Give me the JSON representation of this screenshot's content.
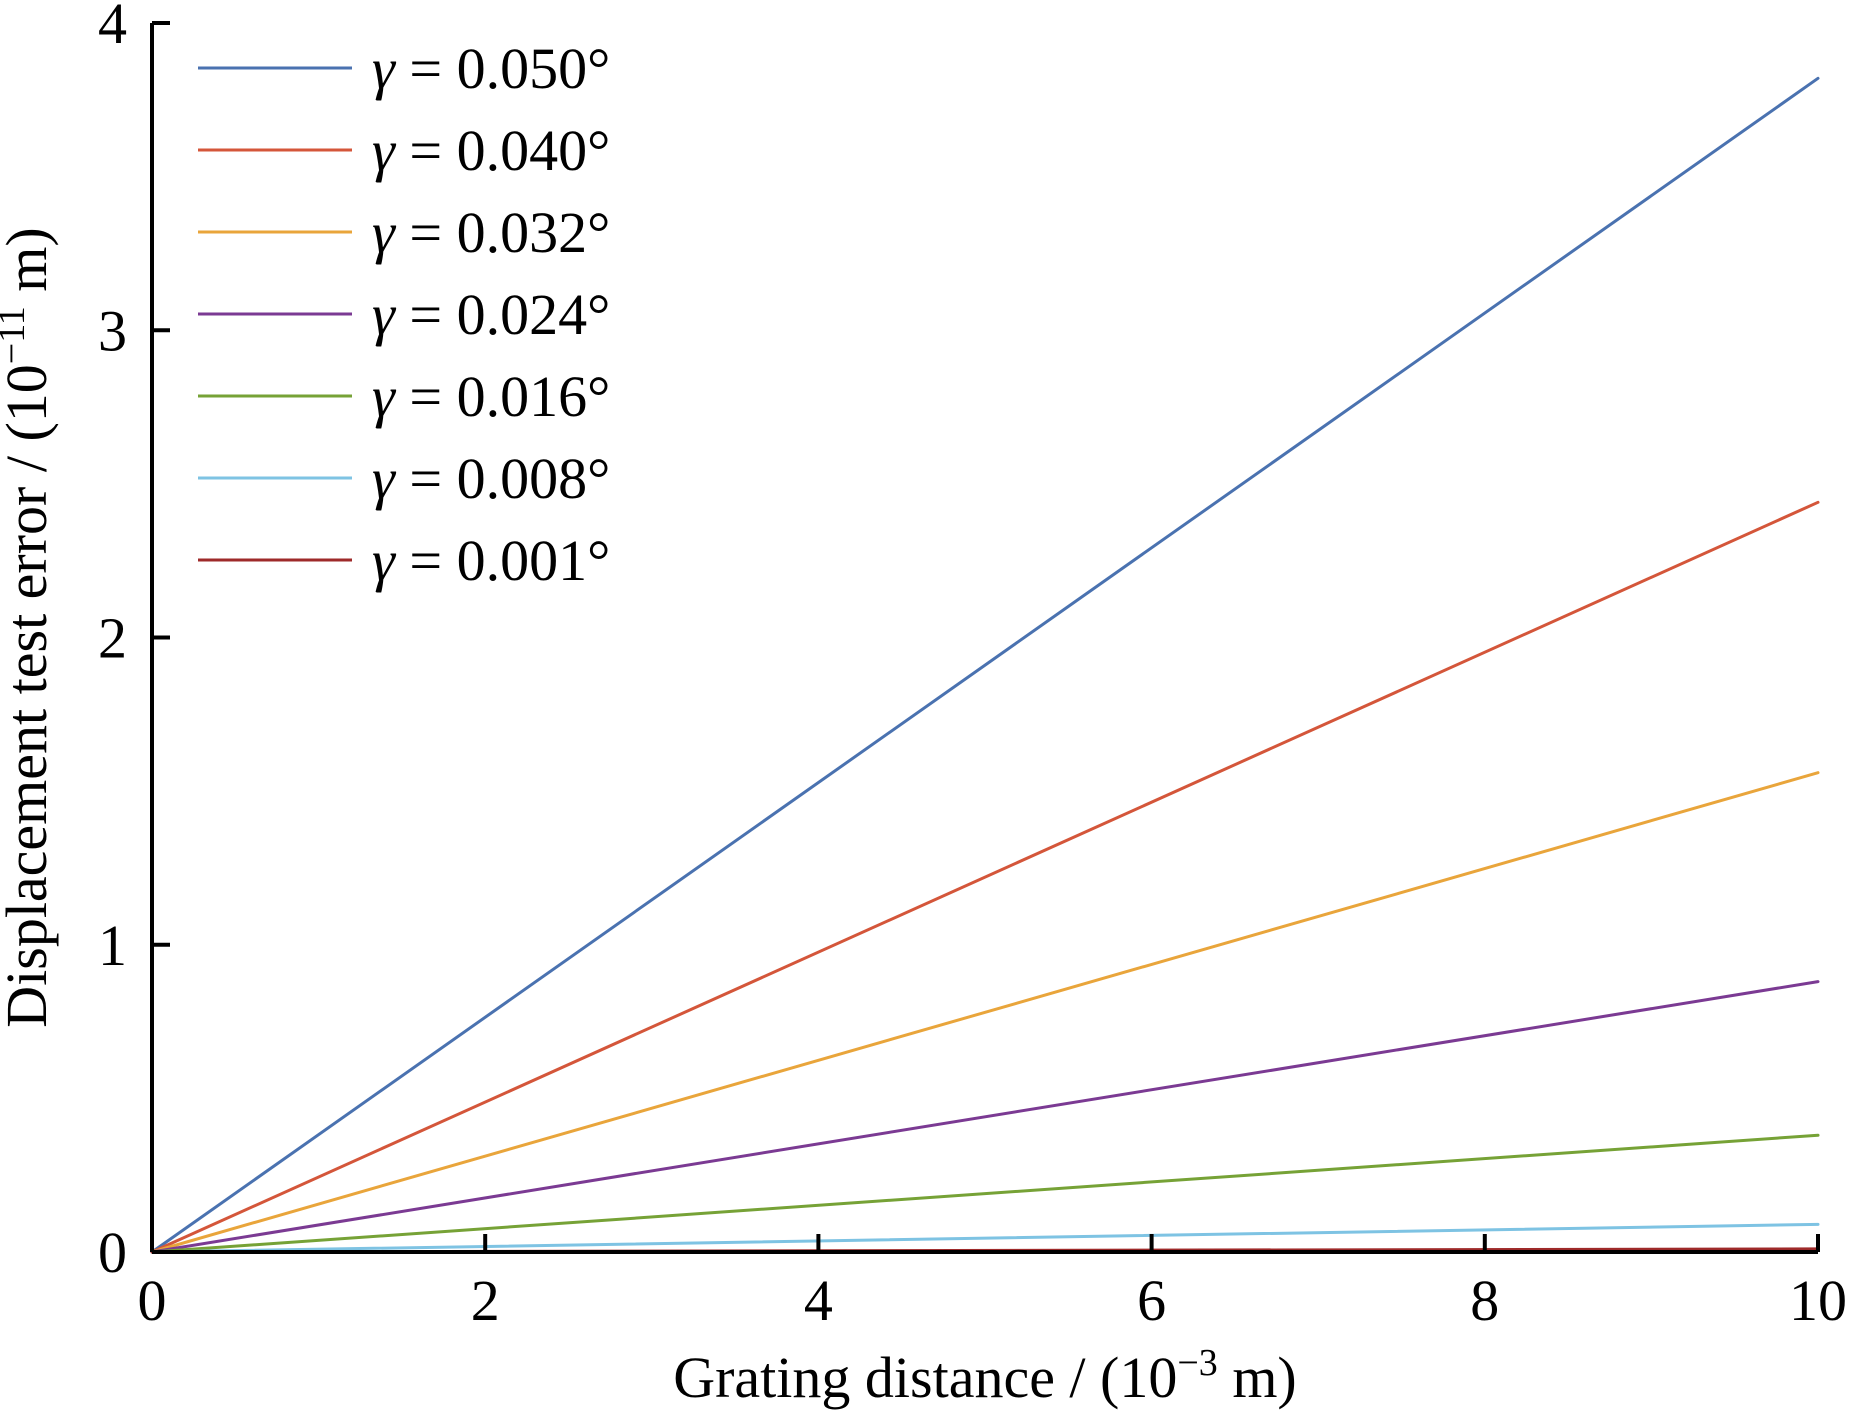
{
  "chart_data": {
    "type": "line",
    "title": "",
    "xlabel": "Grating distance / (10",
    "xlabel_exp": "−3",
    "xlabel_unit": " m)",
    "ylabel": "Displacement test error / (10",
    "ylabel_exp": "−11",
    "ylabel_unit": " m)",
    "xlim": [
      0,
      10
    ],
    "ylim": [
      0,
      4
    ],
    "xticks": [
      "0",
      "2",
      "4",
      "6",
      "8",
      "10"
    ],
    "yticks": [
      "0",
      "1",
      "2",
      "3",
      "4"
    ],
    "grid": false,
    "legend_position": "top-left",
    "x": [
      0,
      10
    ],
    "series": [
      {
        "name": "γ = 0.050°",
        "symbol": "γ",
        "label": " = 0.050°",
        "color": "#4a72b0",
        "values": [
          0,
          3.82
        ]
      },
      {
        "name": "γ = 0.040°",
        "symbol": "γ",
        "label": " = 0.040°",
        "color": "#d4563a",
        "values": [
          0,
          2.44
        ]
      },
      {
        "name": "γ = 0.032°",
        "symbol": "γ",
        "label": " = 0.032°",
        "color": "#e9a53b",
        "values": [
          0,
          1.56
        ]
      },
      {
        "name": "γ = 0.024°",
        "symbol": "γ",
        "label": " = 0.024°",
        "color": "#7b3a93",
        "values": [
          0,
          0.88
        ]
      },
      {
        "name": "γ = 0.016°",
        "symbol": "γ",
        "label": " = 0.016°",
        "color": "#76a236",
        "values": [
          0,
          0.38
        ]
      },
      {
        "name": "γ = 0.008°",
        "symbol": "γ",
        "label": " = 0.008°",
        "color": "#7ec3e3",
        "values": [
          0,
          0.09
        ]
      },
      {
        "name": "γ = 0.001°",
        "symbol": "γ",
        "label": " = 0.001°",
        "color": "#9e2a2a",
        "values": [
          0,
          0.01
        ]
      }
    ]
  }
}
